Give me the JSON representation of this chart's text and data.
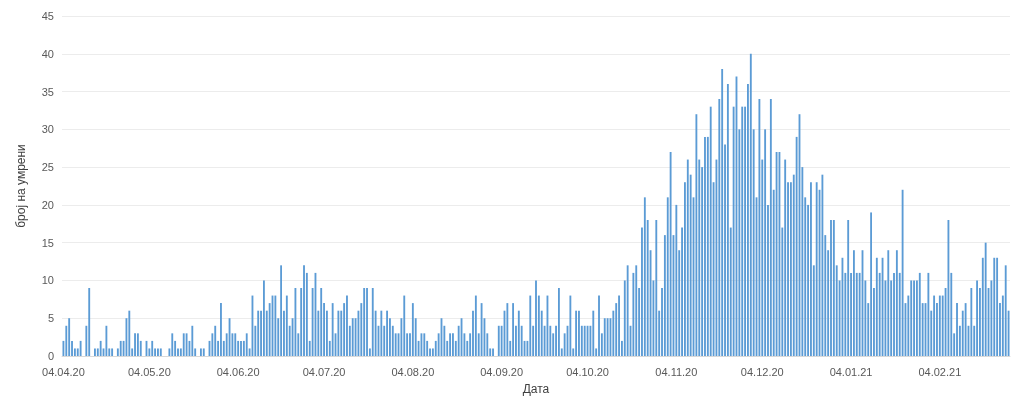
{
  "chart_data": {
    "type": "bar",
    "xlabel": "Дата",
    "ylabel": "број на умрени",
    "color": "#5b9bd5",
    "grid": "y",
    "ylim": [
      0,
      45
    ],
    "yticks": [
      0,
      5,
      10,
      15,
      20,
      25,
      30,
      35,
      40,
      45
    ],
    "categories": [
      "04.04.20",
      null,
      null,
      null,
      null,
      null,
      null,
      null,
      null,
      null,
      null,
      null,
      null,
      null,
      null,
      null,
      null,
      null,
      null,
      null,
      null,
      null,
      null,
      null,
      null,
      null,
      null,
      null,
      null,
      null,
      "04.05.20",
      null,
      null,
      null,
      null,
      null,
      null,
      null,
      null,
      null,
      null,
      null,
      null,
      null,
      null,
      null,
      null,
      null,
      null,
      null,
      null,
      null,
      null,
      null,
      null,
      null,
      null,
      null,
      null,
      null,
      null,
      "04.06.20",
      null,
      null,
      null,
      null,
      null,
      null,
      null,
      null,
      null,
      null,
      null,
      null,
      null,
      null,
      null,
      null,
      null,
      null,
      null,
      null,
      null,
      null,
      null,
      null,
      null,
      null,
      null,
      null,
      null,
      "04.07.20",
      null,
      null,
      null,
      null,
      null,
      null,
      null,
      null,
      null,
      null,
      null,
      null,
      null,
      null,
      null,
      null,
      null,
      null,
      null,
      null,
      null,
      null,
      null,
      null,
      null,
      null,
      null,
      null,
      null,
      null,
      "04.08.20",
      null,
      null,
      null,
      null,
      null,
      null,
      null,
      null,
      null,
      null,
      null,
      null,
      null,
      null,
      null,
      null,
      null,
      null,
      null,
      null,
      null,
      null,
      null,
      null,
      null,
      null,
      null,
      null,
      null,
      null,
      "04.09.20",
      null,
      null,
      null,
      null,
      null,
      null,
      null,
      null,
      null,
      null,
      null,
      null,
      null,
      null,
      null,
      null,
      null,
      null,
      null,
      null,
      null,
      null,
      null,
      null,
      null,
      null,
      null,
      null,
      null,
      "04.10.20",
      null,
      null,
      null,
      null,
      null,
      null,
      null,
      null,
      null,
      null,
      null,
      null,
      null,
      null,
      null,
      null,
      null,
      null,
      null,
      null,
      null,
      null,
      null,
      null,
      null,
      null,
      null,
      null,
      null,
      null,
      "04.11.20",
      null,
      null,
      null,
      null,
      null,
      null,
      null,
      null,
      null,
      null,
      null,
      null,
      null,
      null,
      null,
      null,
      null,
      null,
      null,
      null,
      null,
      null,
      null,
      null,
      null,
      null,
      null,
      null,
      null,
      "04.12.20",
      null,
      null,
      null,
      null,
      null,
      null,
      null,
      null,
      null,
      null,
      null,
      null,
      null,
      null,
      null,
      null,
      null,
      null,
      null,
      null,
      null,
      null,
      null,
      null,
      null,
      null,
      null,
      null,
      null,
      null,
      "04.01.21",
      null,
      null,
      null,
      null,
      null,
      null,
      null,
      null,
      null,
      null,
      null,
      null,
      null,
      null,
      null,
      null,
      null,
      null,
      null,
      null,
      null,
      null,
      null,
      null,
      null,
      null,
      null,
      null,
      null,
      null,
      "04.02.21",
      null,
      null,
      null,
      null,
      null,
      null,
      null,
      null,
      null,
      null,
      null,
      null,
      null,
      null,
      null,
      null,
      null,
      null,
      null,
      null,
      null,
      null,
      null,
      null
    ],
    "values": [
      2,
      4,
      5,
      2,
      1,
      1,
      2,
      0,
      4,
      9,
      0,
      1,
      1,
      2,
      1,
      4,
      1,
      1,
      0,
      1,
      2,
      2,
      5,
      6,
      1,
      3,
      3,
      2,
      0,
      2,
      1,
      2,
      1,
      1,
      1,
      0,
      0,
      1,
      3,
      2,
      1,
      1,
      3,
      3,
      2,
      4,
      1,
      0,
      1,
      1,
      0,
      2,
      3,
      4,
      2,
      7,
      2,
      3,
      5,
      3,
      3,
      2,
      2,
      2,
      3,
      1,
      8,
      4,
      6,
      6,
      10,
      6,
      7,
      8,
      8,
      5,
      12,
      6,
      8,
      4,
      5,
      9,
      3,
      9,
      12,
      11,
      2,
      9,
      11,
      6,
      9,
      7,
      6,
      2,
      7,
      3,
      6,
      6,
      7,
      8,
      4,
      5,
      5,
      6,
      7,
      9,
      9,
      1,
      9,
      6,
      4,
      6,
      4,
      6,
      5,
      4,
      3,
      3,
      5,
      8,
      3,
      3,
      7,
      5,
      2,
      3,
      3,
      2,
      1,
      1,
      2,
      3,
      5,
      4,
      2,
      3,
      3,
      2,
      4,
      5,
      3,
      2,
      3,
      6,
      8,
      3,
      7,
      5,
      3,
      1,
      1,
      0,
      4,
      4,
      6,
      7,
      2,
      7,
      4,
      6,
      4,
      2,
      2,
      8,
      4,
      10,
      8,
      6,
      4,
      8,
      4,
      3,
      4,
      9,
      1,
      3,
      4,
      8,
      1,
      6,
      6,
      4,
      4,
      4,
      4,
      6,
      1,
      8,
      3,
      5,
      5,
      5,
      6,
      7,
      8,
      2,
      10,
      12,
      4,
      11,
      12,
      9,
      17,
      21,
      18,
      14,
      10,
      18,
      6,
      9,
      16,
      21,
      27,
      16,
      20,
      14,
      17,
      23,
      26,
      24,
      21,
      32,
      26,
      25,
      29,
      29,
      33,
      23,
      26,
      34,
      38,
      28,
      36,
      17,
      33,
      37,
      30,
      33,
      33,
      36,
      40,
      30,
      21,
      34,
      26,
      30,
      20,
      34,
      22,
      27,
      27,
      17,
      26,
      23,
      23,
      24,
      29,
      32,
      25,
      21,
      20,
      23,
      12,
      23,
      22,
      24,
      16,
      14,
      18,
      18,
      12,
      10,
      13,
      11,
      18,
      11,
      14,
      11,
      11,
      14,
      10,
      7,
      19,
      9,
      13,
      11,
      13,
      10,
      14,
      10,
      11,
      14,
      11,
      22,
      7,
      8,
      10,
      10,
      10,
      11,
      7,
      7,
      11,
      6,
      8,
      7,
      8,
      8,
      9,
      18,
      11,
      3,
      7,
      4,
      6,
      7,
      4,
      9,
      4,
      10,
      9,
      13,
      15,
      9,
      10,
      13,
      13,
      7,
      8,
      12,
      6
    ]
  }
}
